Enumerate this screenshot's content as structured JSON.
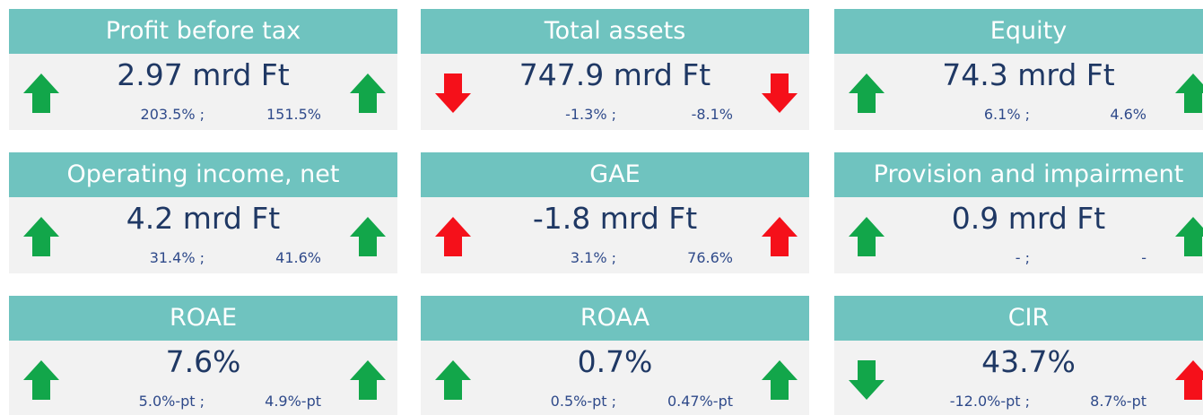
{
  "tiles": [
    {
      "title": "Profit before tax",
      "value": "2.97 mrd Ft",
      "change_left": "203.5% ;",
      "change_right": "151.5%",
      "arrow_left": {
        "direction": "up",
        "color": "#12a64a"
      },
      "arrow_right": {
        "direction": "up",
        "color": "#12a64a"
      }
    },
    {
      "title": "Total assets",
      "value": "747.9 mrd Ft",
      "change_left": "-1.3% ;",
      "change_right": "-8.1%",
      "arrow_left": {
        "direction": "down",
        "color": "#f5101a"
      },
      "arrow_right": {
        "direction": "down",
        "color": "#f5101a"
      }
    },
    {
      "title": "Equity",
      "value": "74.3 mrd Ft",
      "change_left": "6.1% ;",
      "change_right": "4.6%",
      "arrow_left": {
        "direction": "up",
        "color": "#12a64a"
      },
      "arrow_right": {
        "direction": "up",
        "color": "#12a64a"
      }
    },
    {
      "title": "Operating income, net",
      "value": "4.2 mrd Ft",
      "change_left": "31.4% ;",
      "change_right": "41.6%",
      "arrow_left": {
        "direction": "up",
        "color": "#12a64a"
      },
      "arrow_right": {
        "direction": "up",
        "color": "#12a64a"
      }
    },
    {
      "title": "GAE",
      "value": "-1.8 mrd Ft",
      "change_left": "3.1% ;",
      "change_right": "76.6%",
      "arrow_left": {
        "direction": "up",
        "color": "#f5101a"
      },
      "arrow_right": {
        "direction": "up",
        "color": "#f5101a"
      }
    },
    {
      "title": "Provision and impairment",
      "value": "0.9 mrd Ft",
      "change_left": "- ;",
      "change_right": "-",
      "arrow_left": {
        "direction": "up",
        "color": "#12a64a"
      },
      "arrow_right": {
        "direction": "up",
        "color": "#12a64a"
      }
    },
    {
      "title": "ROAE",
      "value": "7.6%",
      "change_left": "5.0%-pt ;",
      "change_right": "4.9%-pt",
      "arrow_left": {
        "direction": "up",
        "color": "#12a64a"
      },
      "arrow_right": {
        "direction": "up",
        "color": "#12a64a"
      }
    },
    {
      "title": "ROAA",
      "value": "0.7%",
      "change_left": "0.5%-pt ;",
      "change_right": "0.47%-pt",
      "arrow_left": {
        "direction": "up",
        "color": "#12a64a"
      },
      "arrow_right": {
        "direction": "up",
        "color": "#12a64a"
      }
    },
    {
      "title": "CIR",
      "value": "43.7%",
      "change_left": "-12.0%-pt ;",
      "change_right": "8.7%-pt",
      "arrow_left": {
        "direction": "down",
        "color": "#12a64a"
      },
      "arrow_right": {
        "direction": "up",
        "color": "#f5101a"
      }
    }
  ]
}
